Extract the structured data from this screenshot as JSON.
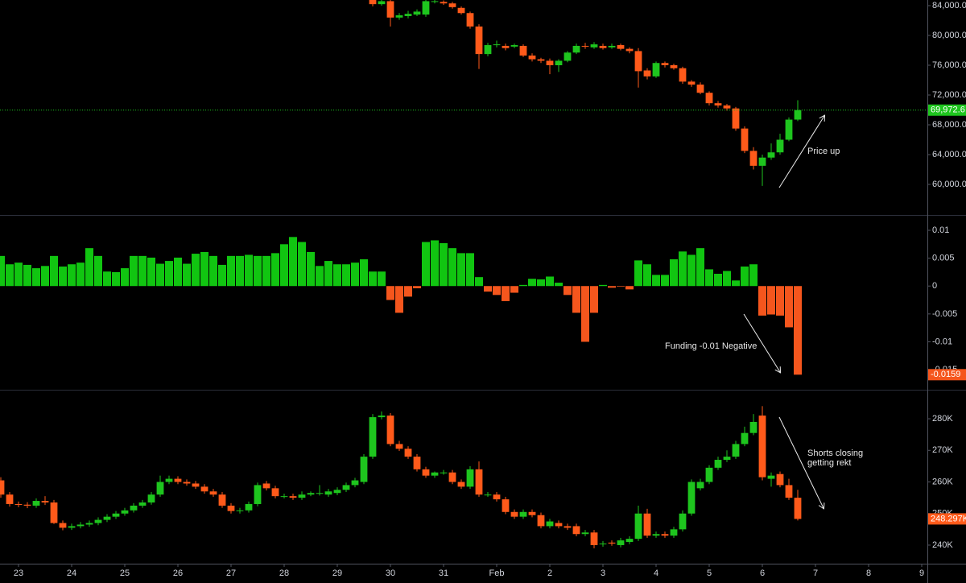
{
  "chart_data": [
    {
      "type": "candlestick",
      "x": [
        160,
        164,
        168,
        172,
        176,
        180,
        184,
        188,
        192,
        196,
        200,
        204,
        208,
        212,
        216,
        220,
        224,
        228,
        232,
        236,
        240,
        244,
        248,
        252,
        256,
        260,
        264,
        268,
        272,
        276,
        280,
        284,
        288,
        292,
        296,
        300,
        304,
        308,
        312,
        316,
        320,
        324,
        328,
        332,
        336,
        340,
        344,
        348,
        352
      ],
      "open": [
        85000,
        84200,
        84600,
        82400,
        82600,
        82800,
        82800,
        84500,
        84500,
        84300,
        83700,
        83000,
        81200,
        77500,
        78700,
        78600,
        78500,
        78600,
        77300,
        76800,
        76600,
        76000,
        76600,
        77700,
        78600,
        78400,
        78600,
        78400,
        78700,
        78200,
        77900,
        75300,
        74500,
        76300,
        76000,
        75600,
        73800,
        73400,
        72300,
        70900,
        70600,
        70200,
        67500,
        64500,
        62500,
        63600,
        64300,
        66000,
        68700
      ],
      "high": [
        85300,
        84900,
        84800,
        83000,
        83300,
        83500,
        84900,
        84900,
        84700,
        84500,
        83900,
        83200,
        81500,
        79000,
        79300,
        78900,
        78900,
        78800,
        77600,
        77000,
        76900,
        76800,
        77900,
        78900,
        79000,
        79100,
        78900,
        78900,
        78900,
        78400,
        78300,
        75600,
        76500,
        76500,
        76200,
        75800,
        74000,
        73700,
        72500,
        71200,
        70800,
        70400,
        67800,
        65000,
        64000,
        65500,
        66800,
        69000,
        71300
      ],
      "low": [
        83900,
        84000,
        81200,
        82100,
        82300,
        82600,
        82500,
        84300,
        84100,
        83600,
        82800,
        80900,
        75500,
        77200,
        78400,
        78000,
        78300,
        77100,
        76500,
        76300,
        74800,
        75100,
        76400,
        77500,
        78200,
        78200,
        78100,
        78200,
        78000,
        77600,
        73000,
        74100,
        74300,
        75700,
        75400,
        73500,
        73100,
        72100,
        70600,
        70300,
        69900,
        67200,
        64200,
        62000,
        59800,
        63300,
        64000,
        65800,
        68500
      ],
      "close": [
        84200,
        84600,
        82400,
        82700,
        82900,
        83200,
        84600,
        84600,
        84300,
        83800,
        83000,
        81200,
        77500,
        78700,
        78800,
        78300,
        78700,
        77300,
        76800,
        76600,
        76000,
        76600,
        77700,
        78600,
        78500,
        78800,
        78300,
        78600,
        78200,
        77900,
        75200,
        74500,
        76300,
        76000,
        75600,
        73800,
        73400,
        72300,
        70900,
        70600,
        70200,
        67500,
        64500,
        62500,
        63600,
        64300,
        66000,
        68700,
        69972.6
      ],
      "up_color": "#1ec51e",
      "down_color": "#ff5a1a",
      "xlim": [
        -8.364,
        410.545
      ],
      "ylim": [
        55892,
        84757
      ],
      "yticks": [
        {
          "value": 60000,
          "label": "60,000.0"
        },
        {
          "value": 64000,
          "label": "64,000.0"
        },
        {
          "value": 68000,
          "label": "68,000.0"
        },
        {
          "value": 72000,
          "label": "72,000.0"
        },
        {
          "value": 76000,
          "label": "76,000.0"
        },
        {
          "value": 80000,
          "label": "80,000.0"
        },
        {
          "value": 84000,
          "label": "84,000.0"
        }
      ],
      "last_value": {
        "value": 69972.6,
        "label": "69,972.6"
      },
      "last_value_color": "#1ec51e",
      "price_line": true,
      "annotation": [
        "Price up"
      ]
    },
    {
      "type": "bar",
      "x": [
        -8,
        -4,
        0,
        4,
        8,
        12,
        16,
        20,
        24,
        28,
        32,
        36,
        40,
        44,
        48,
        52,
        56,
        60,
        64,
        68,
        72,
        76,
        80,
        84,
        88,
        92,
        96,
        100,
        104,
        108,
        112,
        116,
        120,
        124,
        128,
        132,
        136,
        140,
        144,
        148,
        152,
        156,
        160,
        164,
        168,
        172,
        176,
        180,
        184,
        188,
        192,
        196,
        200,
        204,
        208,
        212,
        216,
        220,
        224,
        228,
        232,
        236,
        240,
        244,
        248,
        252,
        256,
        260,
        264,
        268,
        272,
        276,
        280,
        284,
        288,
        292,
        296,
        300,
        304,
        308,
        312,
        316,
        320,
        324,
        328,
        332,
        336,
        340,
        344,
        348,
        352
      ],
      "values": [
        0.0054,
        0.0039,
        0.0042,
        0.0038,
        0.0032,
        0.0036,
        0.0054,
        0.0035,
        0.0039,
        0.0042,
        0.0068,
        0.0054,
        0.0026,
        0.0025,
        0.0032,
        0.0054,
        0.0054,
        0.0051,
        0.004,
        0.0045,
        0.0051,
        0.004,
        0.0058,
        0.0061,
        0.0054,
        0.0038,
        0.0054,
        0.0054,
        0.0056,
        0.0054,
        0.0054,
        0.0059,
        0.0075,
        0.0088,
        0.0079,
        0.0061,
        0.0036,
        0.0045,
        0.0039,
        0.0039,
        0.0042,
        0.0048,
        0.0026,
        0.0026,
        -0.0025,
        -0.0048,
        -0.0019,
        -0.0004,
        0.0079,
        0.0082,
        0.0077,
        0.0068,
        0.0059,
        0.0059,
        0.0016,
        -0.001,
        -0.0016,
        -0.0027,
        -0.0012,
        0.0002,
        0.0013,
        0.0012,
        0.0017,
        0.0006,
        -0.0016,
        -0.0048,
        -0.01,
        -0.0048,
        0.0002,
        -0.0003,
        -0.0001,
        -0.0006,
        0.0046,
        0.0039,
        0.002,
        0.002,
        0.0048,
        0.0062,
        0.0056,
        0.0068,
        0.003,
        0.0022,
        0.0027,
        0.001,
        0.0035,
        0.0039,
        -0.0053,
        -0.0051,
        -0.0053,
        -0.0074,
        -0.0159
      ],
      "up_color": "#11c511",
      "down_color": "#f5561d",
      "xlim": [
        -8.364,
        410.545
      ],
      "ylim": [
        -0.0186,
        0.0126
      ],
      "yticks": [
        0.01,
        0.005,
        0,
        -0.005,
        -0.01,
        -0.015
      ],
      "last_value": -0.0159,
      "last_value_color": "#f5561d",
      "annotation": [
        "Funding -0.01 Negative"
      ]
    },
    {
      "type": "candlestick",
      "x": [
        -8,
        -4,
        0,
        4,
        8,
        12,
        16,
        20,
        24,
        28,
        32,
        36,
        40,
        44,
        48,
        52,
        56,
        60,
        64,
        68,
        72,
        76,
        80,
        84,
        88,
        92,
        96,
        100,
        104,
        108,
        112,
        116,
        120,
        124,
        128,
        132,
        136,
        140,
        144,
        148,
        152,
        156,
        160,
        164,
        168,
        172,
        176,
        180,
        184,
        188,
        192,
        196,
        200,
        204,
        208,
        212,
        216,
        220,
        224,
        228,
        232,
        236,
        240,
        244,
        248,
        252,
        256,
        260,
        264,
        268,
        272,
        276,
        280,
        284,
        288,
        292,
        296,
        300,
        304,
        308,
        312,
        316,
        320,
        324,
        328,
        332,
        336,
        340,
        344,
        348,
        352
      ],
      "open": [
        260.5,
        256,
        253,
        252.8,
        252.5,
        254,
        253.5,
        247,
        245.5,
        246,
        246.5,
        247,
        248,
        249,
        250,
        251,
        252.5,
        253.5,
        256,
        260,
        261,
        260,
        259.5,
        258.5,
        257,
        256,
        252.5,
        250.8,
        251,
        253,
        259.5,
        258,
        255.5,
        255.5,
        255,
        256,
        256.5,
        256,
        256.5,
        257.5,
        259,
        260,
        268,
        280.5,
        281,
        272,
        270.5,
        268,
        264,
        262,
        263,
        263,
        260,
        258.5,
        264,
        256,
        256,
        254.5,
        250.5,
        249,
        250.5,
        249.5,
        246,
        247,
        246,
        246,
        243.5,
        244,
        240.5,
        240.8,
        240,
        241,
        242,
        250,
        243,
        243.5,
        243,
        245,
        250,
        258,
        260,
        264.5,
        267,
        268,
        272,
        275.5,
        281,
        261,
        262.5,
        259,
        255
      ],
      "high": [
        261.5,
        256.8,
        253.8,
        253.6,
        254.8,
        255.5,
        254.3,
        247.8,
        246.8,
        247.3,
        247.8,
        248.8,
        249.8,
        250.8,
        251.8,
        253.3,
        254.3,
        256.8,
        262,
        262,
        261.8,
        260.8,
        260.3,
        259.3,
        257.8,
        256.8,
        253.3,
        251.8,
        253.8,
        259.8,
        260.3,
        258.8,
        256.3,
        256.3,
        257,
        257,
        259,
        257.8,
        258.3,
        259.8,
        261.3,
        268.8,
        281.5,
        282.3,
        281.8,
        273,
        271.3,
        268.8,
        264.8,
        263.3,
        263.8,
        263.8,
        260.8,
        265,
        266.5,
        256.8,
        256.8,
        255.3,
        251.3,
        251.3,
        251.3,
        250.3,
        248.3,
        247.8,
        246.8,
        246.8,
        244.8,
        244.8,
        241.3,
        241.5,
        242.3,
        242.8,
        252.5,
        251.5,
        244.3,
        244.3,
        245.8,
        251,
        260.8,
        261,
        265.3,
        268,
        270,
        273,
        277.5,
        281.5,
        284,
        263,
        263.3,
        261,
        257.5
      ],
      "low": [
        255,
        252.2,
        252,
        251.7,
        251.8,
        252.7,
        246.7,
        244.7,
        244.8,
        245.3,
        245.8,
        246.3,
        247.3,
        248.3,
        249.3,
        250.3,
        251.8,
        252.8,
        255.3,
        259.3,
        259.3,
        258.8,
        257.8,
        256.3,
        255.3,
        251.8,
        250,
        250,
        250.3,
        252.3,
        257.3,
        254.8,
        254.8,
        254.3,
        254.3,
        255.5,
        255.7,
        255.3,
        255.8,
        256.8,
        258.3,
        259.3,
        267.3,
        279.8,
        271.3,
        269.8,
        267.3,
        263.3,
        261.3,
        261.3,
        262.3,
        259.3,
        257.8,
        257.8,
        255.3,
        255.3,
        253.8,
        249.8,
        248.3,
        248.3,
        248.8,
        245.3,
        245.3,
        245.3,
        244.8,
        242.8,
        242.8,
        239,
        239.5,
        239.8,
        239.3,
        240.3,
        241.3,
        242.3,
        242.3,
        242.3,
        242.3,
        244.3,
        249.3,
        257.3,
        259.3,
        263.8,
        266.3,
        267.3,
        271.3,
        274.8,
        260.5,
        258.5,
        258.3,
        254.3,
        247.8
      ],
      "close": [
        256,
        253,
        252.8,
        252.5,
        254,
        253.5,
        247,
        245.5,
        246,
        246.5,
        247,
        248,
        249,
        250,
        251,
        252.5,
        253.5,
        256,
        260,
        261,
        260,
        259.5,
        258.5,
        257,
        256,
        252.5,
        250.8,
        251,
        253,
        259,
        258,
        255.5,
        255.5,
        255,
        256,
        256.5,
        256.5,
        257,
        257.5,
        259,
        260.5,
        268,
        280.5,
        281,
        272,
        270.5,
        268,
        264,
        262,
        263,
        263,
        260,
        258.5,
        264,
        256,
        256,
        254.5,
        250.5,
        249,
        250.5,
        249.5,
        246,
        247.5,
        246,
        245.5,
        243.5,
        244,
        240,
        240.5,
        240.5,
        241.5,
        242,
        250,
        243,
        243.5,
        243,
        245,
        250,
        260,
        260,
        264.5,
        267,
        268,
        272,
        275.5,
        279,
        261.5,
        262,
        259,
        255,
        248.297
      ],
      "up_color": "#1ec51e",
      "down_color": "#ff5a1a",
      "xlim": [
        -8.364,
        410.545
      ],
      "ylim": [
        234.13,
        288.93
      ],
      "yticks": [
        {
          "value": 240,
          "label": "240K"
        },
        {
          "value": 250,
          "label": "250K"
        },
        {
          "value": 260,
          "label": "260K"
        },
        {
          "value": 270,
          "label": "270K"
        },
        {
          "value": 280,
          "label": "280K"
        }
      ],
      "xticks": [
        {
          "value": 0,
          "label": "23"
        },
        {
          "value": 24,
          "label": "24"
        },
        {
          "value": 48,
          "label": "25"
        },
        {
          "value": 72,
          "label": "26"
        },
        {
          "value": 96,
          "label": "27"
        },
        {
          "value": 120,
          "label": "28"
        },
        {
          "value": 144,
          "label": "29"
        },
        {
          "value": 168,
          "label": "30"
        },
        {
          "value": 192,
          "label": "31"
        },
        {
          "value": 216,
          "label": "Feb"
        },
        {
          "value": 240,
          "label": "2"
        },
        {
          "value": 264,
          "label": "3"
        },
        {
          "value": 288,
          "label": "4"
        },
        {
          "value": 312,
          "label": "5"
        },
        {
          "value": 336,
          "label": "6"
        },
        {
          "value": 360,
          "label": "7"
        },
        {
          "value": 384,
          "label": "8"
        },
        {
          "value": 408,
          "label": "9"
        }
      ],
      "last_value": {
        "value": 248.297,
        "label": "248.297K"
      },
      "last_value_color": "#ff5a1a",
      "annotation": [
        "Shorts closing",
        "getting rekt"
      ]
    }
  ]
}
